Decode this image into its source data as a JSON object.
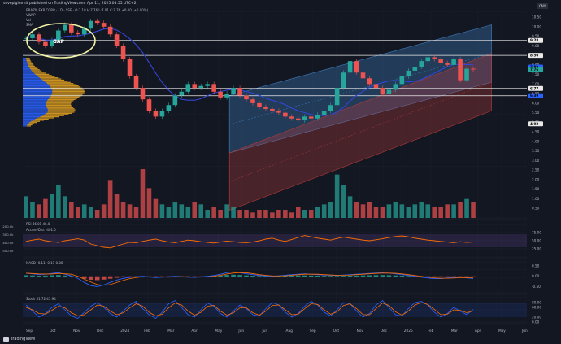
{
  "header": {
    "author_line": "seveplgimmit published on TradingView.com, Apr 11, 2025 08:55 UTC+2",
    "symbol_line": "BRAZIL EXP CORP · 1D · SSE · O:7.18 H:7.76 L:7.01 C:7.76 +0.00 (+0.00%)"
  },
  "legends": {
    "price": [
      "VWAP",
      "Vol",
      "SMA"
    ],
    "rsi": "RSI 46.01  46.0",
    "accum": "Accum/Dist  -401.0",
    "macd": "MACD  -0.11  -0.11  0.00",
    "stoch": "Stoch  51.72  45.94"
  },
  "annotations": {
    "gap": "GAP"
  },
  "badges": {
    "currency": "CNY",
    "brand": "TradingView"
  },
  "colors": {
    "bg": "#131722",
    "grid": "#1e222d",
    "up": "#26a69a",
    "down": "#ef5350",
    "channel_blue": "#3f7fbf",
    "channel_red": "#b03a3a",
    "volume_profile_blue": "#2962ff",
    "volume_profile_orange": "#e0a020",
    "ma_blue": "#3445d6",
    "hline": "#e8e8e8",
    "rsi_line": "#ff6d00",
    "rsi_band": "#7e57c2",
    "stoch_k": "#2962ff",
    "stoch_d": "#ff6d00",
    "gap_circle": "#f2f5a6",
    "badge": "#2a2e39"
  },
  "chart_data": [
    {
      "type": "candlestick",
      "title": "Main price panel",
      "y_ticks": [
        "10.50",
        "10.00",
        "9.50",
        "9.00",
        "8.50",
        "8.00",
        "7.50",
        "7.00",
        "6.50",
        "6.00",
        "5.50",
        "5.00",
        "4.50",
        "4.00",
        "3.50",
        "3.00",
        "2.50",
        "2.00",
        "1.50",
        "1.00",
        "0.50"
      ],
      "ylim": [
        0,
        10.8
      ],
      "x_ticks": [
        "Sep",
        "Oct",
        "Nov",
        "Dec",
        "2024",
        "Feb",
        "Mar",
        "Apr",
        "May",
        "Jun",
        "Jul",
        "Aug",
        "Sep",
        "Oct",
        "Nov",
        "Dec",
        "2025",
        "Feb",
        "Mar",
        "Apr",
        "May",
        "Jun"
      ],
      "horizontal_levels": [
        9.28,
        8.5,
        6.77,
        6.39,
        4.92
      ],
      "price_labels": [
        {
          "text": "9.28",
          "value": 9.28,
          "color": "#e8e8e8"
        },
        {
          "text": "8.50",
          "value": 8.5,
          "color": "#e8e8e8"
        },
        {
          "text": "7.89",
          "value": 7.89,
          "color": "#2962ff"
        },
        {
          "text": "7.76",
          "value": 7.76,
          "color": "#26a69a"
        },
        {
          "text": "6.77",
          "value": 6.77,
          "color": "#e8e8e8"
        },
        {
          "text": "6.39",
          "value": 6.39,
          "color": "#2962ff"
        },
        {
          "text": "4.92",
          "value": 4.92,
          "color": "#e8e8e8"
        }
      ],
      "close_series": [
        9.4,
        9.6,
        9.2,
        9.0,
        9.3,
        9.8,
        10.1,
        9.7,
        9.6,
        9.9,
        10.3,
        10.2,
        10.0,
        9.6,
        9.0,
        8.3,
        7.4,
        6.8,
        6.2,
        5.6,
        5.3,
        5.6,
        5.9,
        6.4,
        6.6,
        7.0,
        6.8,
        6.9,
        7.0,
        6.6,
        6.3,
        6.5,
        6.8,
        6.4,
        6.2,
        6.0,
        5.8,
        5.7,
        5.6,
        5.5,
        5.3,
        5.2,
        5.1,
        5.3,
        5.2,
        5.4,
        5.6,
        5.9,
        6.8,
        7.6,
        8.2,
        7.6,
        7.3,
        7.0,
        6.8,
        6.5,
        6.7,
        7.0,
        7.4,
        7.7,
        7.9,
        8.2,
        8.4,
        8.3,
        8.1,
        8.0,
        8.3,
        7.2,
        7.8,
        7.76
      ],
      "channels": [
        {
          "name": "blue channel",
          "start": [
            0.41,
            6.4
          ],
          "end": [
            0.93,
            10.1
          ],
          "width": 3.0
        },
        {
          "name": "red channel",
          "start": [
            0.41,
            3.4
          ],
          "end": [
            0.93,
            8.6
          ],
          "width": 3.0
        }
      ],
      "volume_series": [
        0.8,
        0.6,
        0.5,
        0.7,
        0.9,
        1.2,
        0.8,
        0.6,
        0.4,
        0.5,
        0.4,
        0.3,
        0.5,
        1.4,
        0.9,
        0.6,
        0.5,
        0.4,
        1.8,
        1.1,
        0.7,
        0.5,
        0.4,
        0.6,
        0.5,
        0.4,
        0.6,
        0.5,
        0.3,
        0.4,
        0.3,
        0.5,
        0.4,
        0.3,
        0.3,
        0.2,
        0.3,
        0.3,
        0.2,
        0.3,
        0.3,
        0.2,
        0.4,
        0.3,
        0.3,
        0.4,
        0.5,
        0.6,
        1.6,
        1.2,
        0.8,
        0.6,
        0.5,
        0.6,
        0.4,
        0.4,
        0.5,
        0.6,
        0.5,
        0.4,
        0.5,
        0.6,
        0.5,
        0.4,
        0.4,
        0.5,
        0.5,
        0.6,
        0.7,
        0.6
      ]
    },
    {
      "type": "line",
      "title": "RSI / Accum/Dist",
      "y_ticks_left": [
        "-200.0k",
        "-300.0k",
        "-400.0k",
        "-500.0k"
      ],
      "y_ticks_right": [
        "75.00",
        "50.00",
        "25.00"
      ],
      "ylim": [
        0,
        100
      ],
      "band": [
        30,
        70
      ],
      "values": [
        48,
        52,
        55,
        50,
        47,
        45,
        50,
        53,
        56,
        52,
        40,
        35,
        30,
        28,
        34,
        40,
        45,
        44,
        48,
        52,
        55,
        50,
        46,
        44,
        48,
        52,
        50,
        47,
        45,
        43,
        46,
        49,
        47,
        45,
        44,
        46,
        50,
        55,
        58,
        52,
        48,
        54,
        60,
        66,
        62,
        58,
        55,
        52,
        57,
        61,
        58,
        55,
        52,
        50,
        53,
        56,
        60,
        63,
        65,
        62,
        58,
        55,
        52,
        50,
        48,
        46,
        44,
        47,
        45,
        46
      ]
    },
    {
      "type": "line",
      "title": "MACD",
      "y_ticks_right": [
        "0.50",
        "0.00",
        "-0.50"
      ],
      "ylim": [
        -0.8,
        0.7
      ],
      "values": [
        0.15,
        0.12,
        0.08,
        0.1,
        0.14,
        0.18,
        0.1,
        0.02,
        -0.1,
        -0.3,
        -0.45,
        -0.5,
        -0.42,
        -0.3,
        -0.18,
        -0.1,
        -0.05,
        -0.02,
        0.0,
        -0.03,
        -0.06,
        -0.04,
        -0.02,
        0.0,
        -0.02,
        -0.04,
        -0.05,
        -0.03,
        0.0,
        0.04,
        0.1,
        0.18,
        0.22,
        0.18,
        0.12,
        0.08,
        0.04,
        0.02,
        0.0,
        0.02,
        0.05,
        0.08,
        0.1,
        0.12,
        0.1,
        0.08,
        0.06,
        0.05,
        0.04,
        0.06,
        0.08,
        0.1,
        0.12,
        0.14,
        0.16,
        0.17,
        0.15,
        0.12,
        0.08,
        0.04,
        0.0,
        -0.04,
        -0.08,
        -0.11,
        -0.11,
        -0.08,
        -0.06,
        -0.05,
        -0.07,
        -0.11
      ]
    },
    {
      "type": "line",
      "title": "Stoch",
      "y_ticks_right": [
        "80.00",
        "60.00",
        "20.00",
        "0.00"
      ],
      "ylim": [
        0,
        100
      ],
      "band": [
        20,
        80
      ],
      "k_values": [
        70,
        45,
        20,
        35,
        60,
        75,
        50,
        25,
        15,
        40,
        65,
        80,
        60,
        35,
        20,
        45,
        70,
        85,
        55,
        30,
        15,
        40,
        75,
        88,
        60,
        30,
        20,
        50,
        78,
        65,
        35,
        20,
        45,
        70,
        55,
        30,
        25,
        55,
        80,
        70,
        40,
        20,
        35,
        65,
        85,
        70,
        40,
        25,
        50,
        80,
        75,
        45,
        20,
        35,
        70,
        88,
        60,
        30,
        25,
        55,
        80,
        85,
        70,
        40,
        20,
        35,
        60,
        45,
        30,
        52
      ],
      "d_values": [
        60,
        50,
        35,
        33,
        48,
        65,
        58,
        38,
        25,
        30,
        50,
        70,
        65,
        45,
        30,
        38,
        58,
        75,
        65,
        40,
        25,
        32,
        58,
        78,
        70,
        45,
        28,
        40,
        65,
        68,
        45,
        28,
        38,
        58,
        58,
        38,
        28,
        45,
        68,
        70,
        50,
        30,
        32,
        55,
        75,
        72,
        50,
        32,
        42,
        68,
        75,
        55,
        30,
        30,
        55,
        78,
        68,
        42,
        28,
        45,
        70,
        80,
        72,
        52,
        30,
        32,
        50,
        48,
        38,
        46
      ]
    }
  ]
}
